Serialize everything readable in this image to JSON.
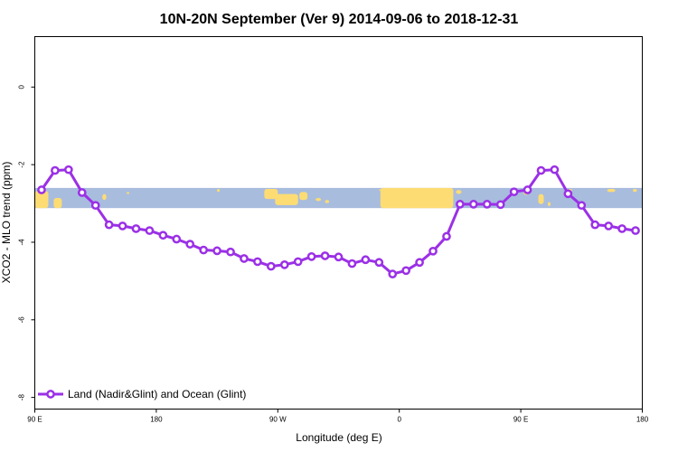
{
  "chart_data": {
    "type": "line",
    "title": "10N-20N September (Ver 9)   2014-09-06 to 2018-12-31",
    "xlabel": "Longitude (deg E)",
    "ylabel": "XCO2 - MLO trend (ppm)",
    "x_ticks": [
      {
        "value": 90,
        "label": "90 E"
      },
      {
        "value": 180,
        "label": "180"
      },
      {
        "value": 270,
        "label": "90 W"
      },
      {
        "value": 360,
        "label": "0"
      },
      {
        "value": 450,
        "label": "90 E"
      },
      {
        "value": 540,
        "label": "180"
      }
    ],
    "y_ticks": [
      {
        "value": 0,
        "label": "0"
      },
      {
        "value": -2,
        "label": "-2"
      },
      {
        "value": -4,
        "label": "-4"
      },
      {
        "value": -6,
        "label": "-6"
      },
      {
        "value": -8,
        "label": "-8"
      }
    ],
    "xlim": [
      90,
      540
    ],
    "ylim": [
      -8.3,
      1.3
    ],
    "legend_position": "bottom-left",
    "map_strip": {
      "ocean_color": "#a8bcde",
      "land_color": "#fddc73",
      "y_range": [
        -3.12,
        -2.6
      ]
    },
    "series": [
      {
        "name": "Land (Nadir&Glint) and Ocean (Glint)",
        "color": "#9b30e6",
        "x": [
          95,
          105,
          115,
          125,
          135,
          145,
          155,
          165,
          175,
          185,
          195,
          205,
          215,
          225,
          235,
          245,
          255,
          265,
          275,
          285,
          295,
          305,
          315,
          325,
          335,
          345,
          355,
          365,
          375,
          385,
          395,
          405,
          415,
          425,
          435,
          445,
          455,
          465,
          475,
          485,
          495,
          505,
          515,
          525,
          535
        ],
        "y": [
          -2.65,
          -2.15,
          -2.13,
          -2.72,
          -3.05,
          -3.55,
          -3.58,
          -3.65,
          -3.7,
          -3.82,
          -3.92,
          -4.05,
          -4.2,
          -4.22,
          -4.25,
          -4.42,
          -4.5,
          -4.62,
          -4.58,
          -4.5,
          -4.37,
          -4.35,
          -4.38,
          -4.55,
          -4.45,
          -4.52,
          -4.82,
          -4.73,
          -4.52,
          -4.23,
          -3.85,
          -3.02,
          -3.02,
          -3.02,
          -3.03,
          -2.7,
          -2.65,
          -2.15,
          -2.13,
          -2.75,
          -3.05,
          -3.55,
          -3.58,
          -3.65,
          -3.7
        ]
      }
    ]
  }
}
